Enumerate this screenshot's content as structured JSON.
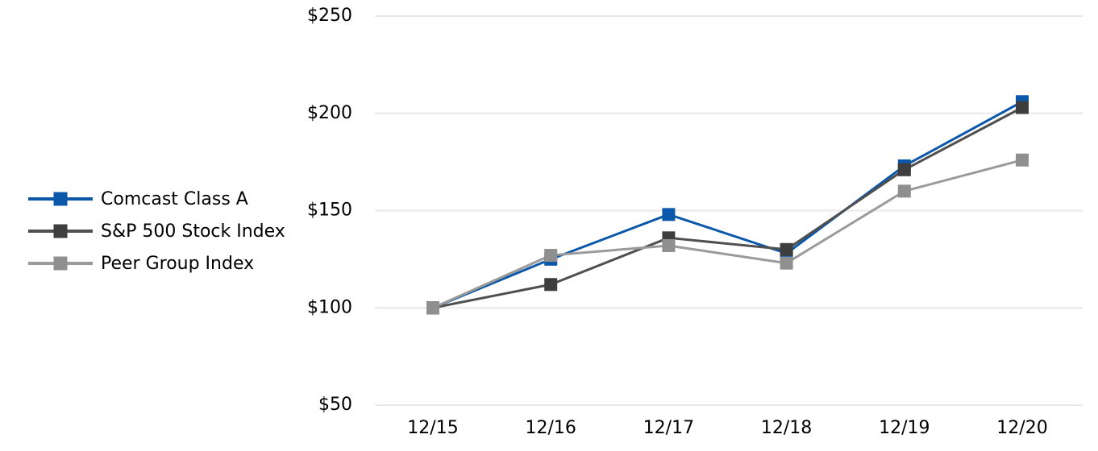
{
  "colors": {
    "background": "#ffffff",
    "gridline": "#e8e8e8",
    "text": "#000000"
  },
  "chart_data": {
    "type": "line",
    "title": "",
    "xlabel": "",
    "ylabel": "",
    "marker": "square",
    "grid": "horizontal",
    "legend_position": "left-middle",
    "ylim": [
      50,
      250
    ],
    "x_categories": [
      "12/15",
      "12/16",
      "12/17",
      "12/18",
      "12/19",
      "12/20"
    ],
    "y_ticks": [
      {
        "value": 250,
        "label": "$250"
      },
      {
        "value": 200,
        "label": "$200"
      },
      {
        "value": 150,
        "label": "$150"
      },
      {
        "value": 100,
        "label": "$100"
      },
      {
        "value": 50,
        "label": "$50"
      }
    ],
    "series": [
      {
        "name": "Comcast Class A",
        "line_color": "#0b57a9",
        "marker_color": "#0b57a9",
        "values": [
          100,
          125,
          148,
          128,
          173,
          206
        ]
      },
      {
        "name": "S&P 500 Stock Index",
        "line_color": "#4f4f4f",
        "marker_color": "#3e3e3e",
        "values": [
          100,
          112,
          136,
          130,
          171,
          203
        ]
      },
      {
        "name": "Peer Group Index",
        "line_color": "#9a9a9a",
        "marker_color": "#8f8f8f",
        "values": [
          100,
          127,
          132,
          123,
          160,
          176
        ]
      }
    ]
  }
}
